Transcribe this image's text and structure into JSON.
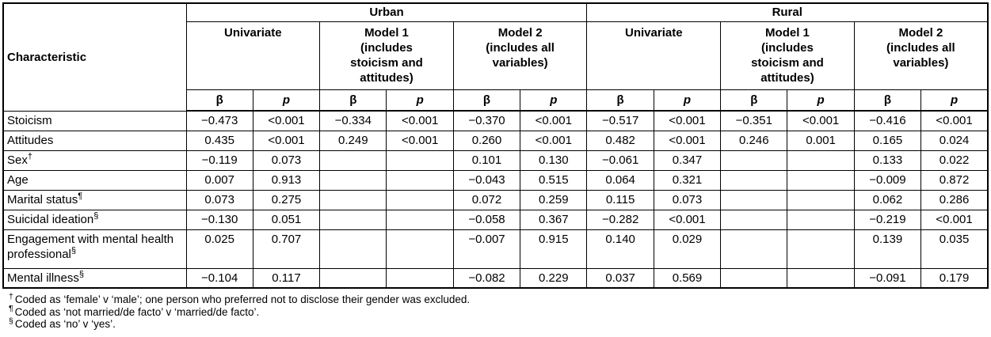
{
  "table": {
    "corner_header": "Characteristic",
    "region_headers": [
      "Urban",
      "Rural"
    ],
    "model_headers": [
      "Univariate",
      "Model 1\n(includes\nstoicism and\nattitudes)",
      "Model 2\n(includes all\nvariables)"
    ],
    "stat_headers": {
      "beta": "β",
      "p": "p"
    },
    "rows": [
      {
        "label": "Stoicism",
        "sup": "",
        "values": [
          "−0.473",
          "<0.001",
          "−0.334",
          "<0.001",
          "−0.370",
          "<0.001",
          "−0.517",
          "<0.001",
          "−0.351",
          "<0.001",
          "−0.416",
          "<0.001"
        ]
      },
      {
        "label": "Attitudes",
        "sup": "",
        "values": [
          "0.435",
          "<0.001",
          "0.249",
          "<0.001",
          "0.260",
          "<0.001",
          "0.482",
          "<0.001",
          "0.246",
          "0.001",
          "0.165",
          "0.024"
        ]
      },
      {
        "label": "Sex",
        "sup": "†",
        "values": [
          "−0.119",
          "0.073",
          "",
          "",
          "0.101",
          "0.130",
          "−0.061",
          "0.347",
          "",
          "",
          "0.133",
          "0.022"
        ]
      },
      {
        "label": "Age",
        "sup": "",
        "values": [
          "0.007",
          "0.913",
          "",
          "",
          "−0.043",
          "0.515",
          "0.064",
          "0.321",
          "",
          "",
          "−0.009",
          "0.872"
        ]
      },
      {
        "label": "Marital status",
        "sup": "¶",
        "values": [
          "0.073",
          "0.275",
          "",
          "",
          "0.072",
          "0.259",
          "0.115",
          "0.073",
          "",
          "",
          "0.062",
          "0.286"
        ]
      },
      {
        "label": "Suicidal ideation",
        "sup": "§",
        "values": [
          "−0.130",
          "0.051",
          "",
          "",
          "−0.058",
          "0.367",
          "−0.282",
          "<0.001",
          "",
          "",
          "−0.219",
          "<0.001"
        ]
      },
      {
        "label": "Engagement with mental health professional",
        "sup": "§",
        "values": [
          "0.025",
          "0.707",
          "",
          "",
          "−0.007",
          "0.915",
          "0.140",
          "0.029",
          "",
          "",
          "0.139",
          "0.035"
        ]
      },
      {
        "label": "Mental illness",
        "sup": "§",
        "values": [
          "−0.104",
          "0.117",
          "",
          "",
          "−0.082",
          "0.229",
          "0.037",
          "0.569",
          "",
          "",
          "−0.091",
          "0.179"
        ]
      }
    ]
  },
  "footnotes": [
    {
      "symbol": "†",
      "text": "Coded as ‘female’ v ‘male’; one person who preferred not to disclose their gender was excluded."
    },
    {
      "symbol": "¶",
      "text": "Coded as ‘not married/de facto’ v ‘married/de facto’."
    },
    {
      "symbol": "§",
      "text": "Coded as ‘no’ v ‘yes’."
    }
  ]
}
